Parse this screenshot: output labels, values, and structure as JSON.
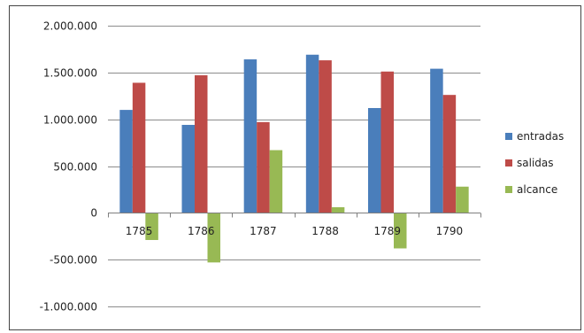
{
  "chart_data": {
    "type": "bar",
    "categories": [
      "1785",
      "1786",
      "1787",
      "1788",
      "1789",
      "1790"
    ],
    "series": [
      {
        "name": "entradas",
        "color": "#4a7ebb",
        "values": [
          1100000,
          940000,
          1640000,
          1690000,
          1120000,
          1540000
        ]
      },
      {
        "name": "salidas",
        "color": "#be4b48",
        "values": [
          1390000,
          1470000,
          970000,
          1630000,
          1510000,
          1260000
        ]
      },
      {
        "name": "alcance",
        "color": "#98b954",
        "values": [
          -290000,
          -530000,
          670000,
          60000,
          -380000,
          280000
        ]
      }
    ],
    "y_ticks": [
      "2.000.000",
      "1.500.000",
      "1.000.000",
      "500.000",
      "0",
      "-500.000",
      "-1.000.000"
    ],
    "ylim": [
      -1000000,
      2000000
    ],
    "grid": true,
    "legend_position": "right"
  }
}
